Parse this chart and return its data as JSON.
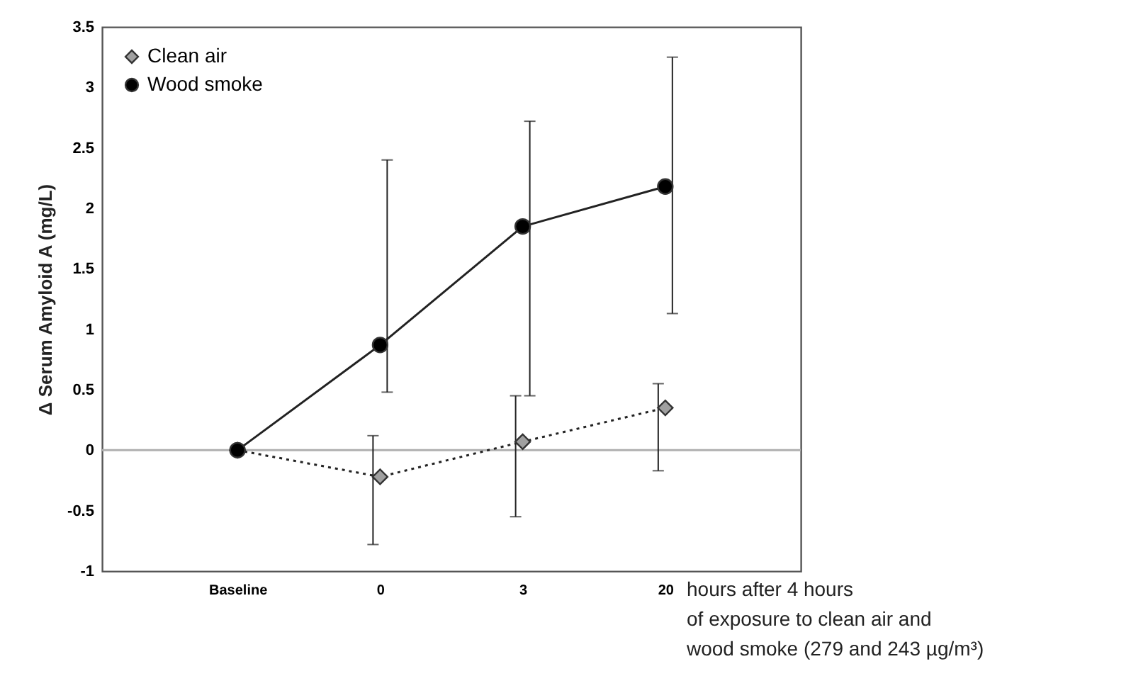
{
  "chart_data": {
    "type": "line",
    "ylabel": "Δ Serum Amyloid A (mg/L)",
    "xlabel": "hours after 4 hours\nof exposure to clean air and\nwood smoke (279 and 243 µg/m³)",
    "categories": [
      "Baseline",
      "0",
      "3",
      "20"
    ],
    "series": [
      {
        "name": "Clean air",
        "color": "#a0a0a0",
        "marker": "diamond",
        "line_style": "dotted",
        "values": [
          0,
          -0.22,
          0.07,
          0.35
        ],
        "errors": [
          null,
          [
            -0.78,
            0.12
          ],
          [
            -0.55,
            0.45
          ],
          [
            -0.17,
            0.55
          ]
        ]
      },
      {
        "name": "Wood smoke",
        "color": "#000000",
        "marker": "circle",
        "line_style": "solid",
        "values": [
          0,
          0.87,
          1.85,
          2.18
        ],
        "errors": [
          null,
          [
            0.48,
            2.4
          ],
          [
            0.45,
            2.72
          ],
          [
            1.13,
            3.25
          ]
        ]
      }
    ],
    "ylim": [
      -1,
      3.5
    ],
    "yticks": [
      -1,
      -0.5,
      0,
      0.5,
      1,
      1.5,
      2,
      2.5,
      3,
      3.5
    ],
    "ref_lines": [
      {
        "axis": "y",
        "value": 0,
        "color": "#b0b0b0"
      }
    ],
    "legend": "top left"
  }
}
